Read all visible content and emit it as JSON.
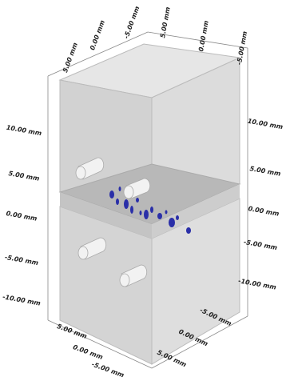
{
  "axis_labels": {
    "top_left": [
      "5.00 mm",
      "0.00 mm",
      "-5.00 mm"
    ],
    "top_right": [
      "5.00 mm",
      "0.00 mm",
      "-5.00 mm"
    ],
    "left": [
      "10.00 mm",
      "5.00 mm",
      "0.00 mm",
      "-5.00 mm",
      "-10.00 mm"
    ],
    "right": [
      "10.00 mm",
      "5.00 mm",
      "0.00 mm",
      "-5.00 mm",
      "-10.00 mm"
    ],
    "bottom_left": [
      "5.00 mm",
      "0.00 mm",
      "-5.00 mm"
    ],
    "bottom_right": [
      "-5.00 mm",
      "0.00 mm",
      "5.00 mm"
    ]
  }
}
